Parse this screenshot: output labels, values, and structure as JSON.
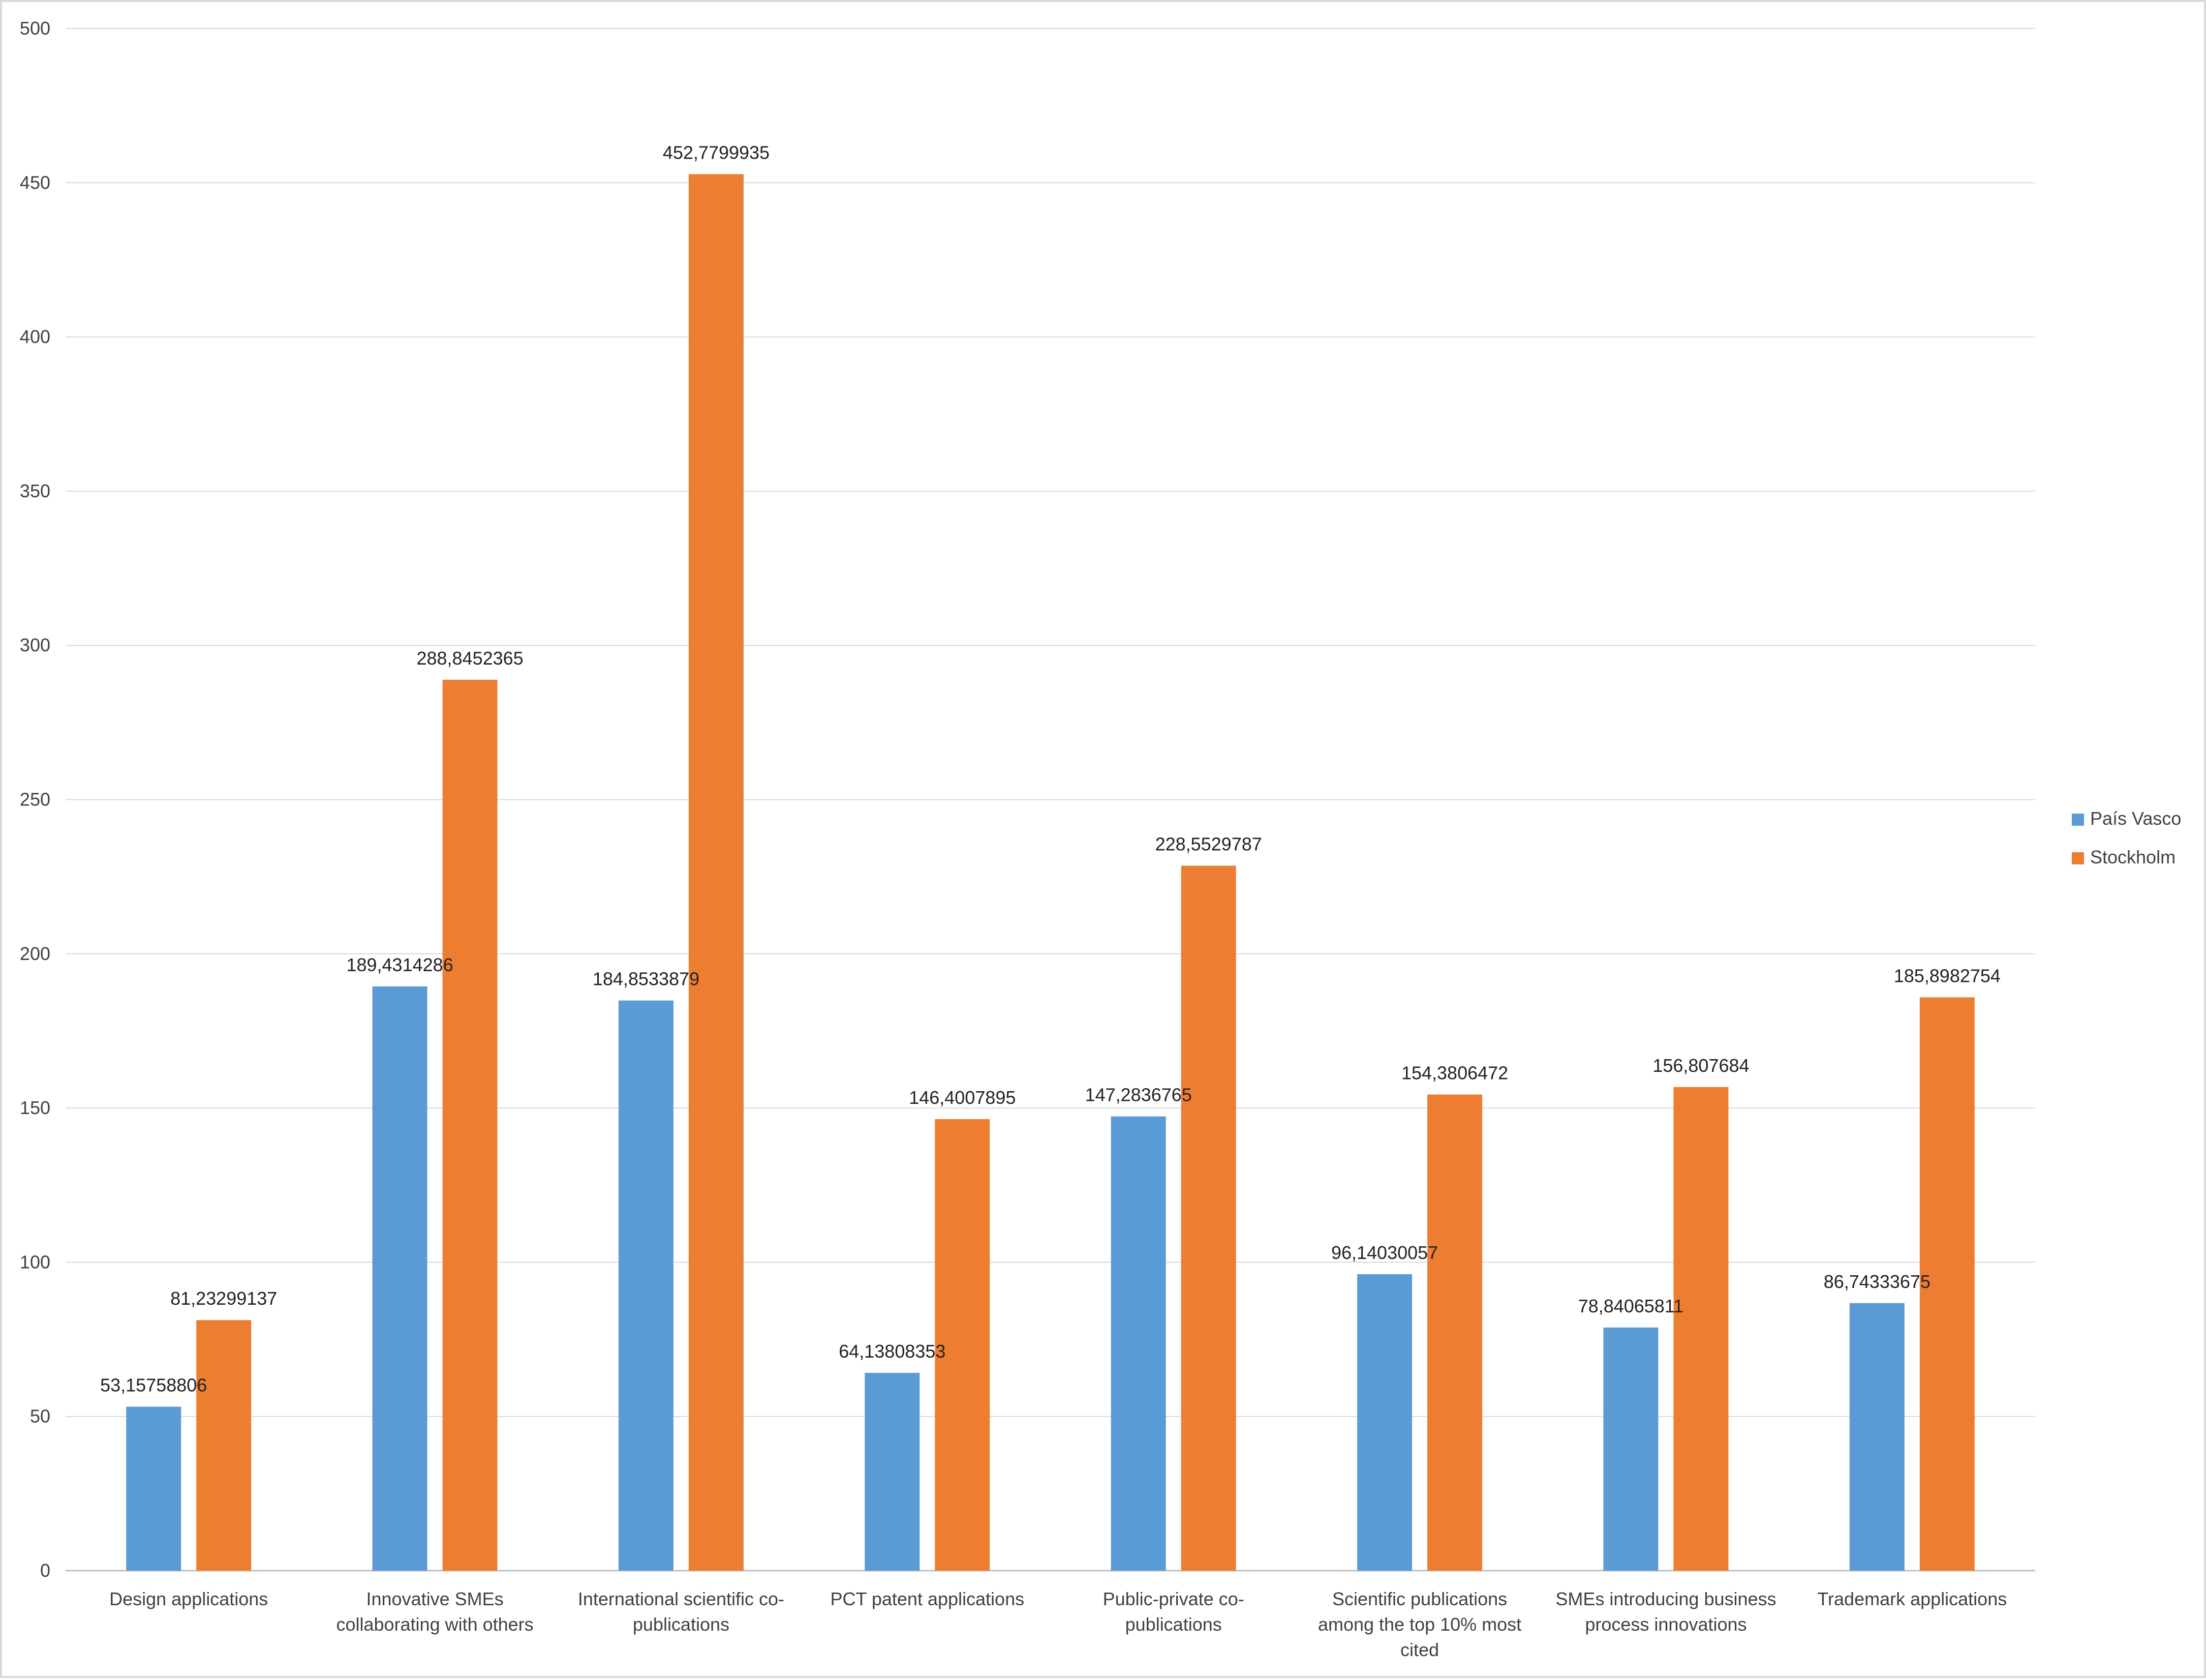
{
  "chart_data": {
    "type": "bar",
    "title": "",
    "xlabel": "",
    "ylabel": "",
    "ylim": [
      0,
      500
    ],
    "yticks": [
      0,
      50,
      100,
      150,
      200,
      250,
      300,
      350,
      400,
      450,
      500
    ],
    "grid": true,
    "legend_position": "right",
    "categories": [
      [
        "Design applications"
      ],
      [
        "Innovative SMEs",
        "collaborating with others"
      ],
      [
        "International scientific co-",
        "publications"
      ],
      [
        "PCT patent applications"
      ],
      [
        "Public-private co-",
        "publications"
      ],
      [
        "Scientific publications",
        "among the top 10% most",
        "cited"
      ],
      [
        "SMEs introducing business",
        "process innovations"
      ],
      [
        "Trademark applications"
      ]
    ],
    "series": [
      {
        "name": "País Vasco",
        "color": "#5b9bd5",
        "values": [
          53.15758806,
          189.4314286,
          184.8533879,
          64.13808353,
          147.2836765,
          96.14030057,
          78.84065811,
          86.74333675
        ],
        "labels": [
          "53,15758806",
          "189,4314286",
          "184,8533879",
          "64,13808353",
          "147,2836765",
          "96,14030057",
          "78,84065811",
          "86,74333675"
        ]
      },
      {
        "name": "Stockholm",
        "color": "#ed7d31",
        "values": [
          81.23299137,
          288.8452365,
          452.7799935,
          146.4007895,
          228.5529787,
          154.3806472,
          156.807684,
          185.8982754
        ],
        "labels": [
          "81,23299137",
          "288,8452365",
          "452,7799935",
          "146,4007895",
          "228,5529787",
          "154,3806472",
          "156,807684",
          "185,8982754"
        ]
      }
    ]
  }
}
